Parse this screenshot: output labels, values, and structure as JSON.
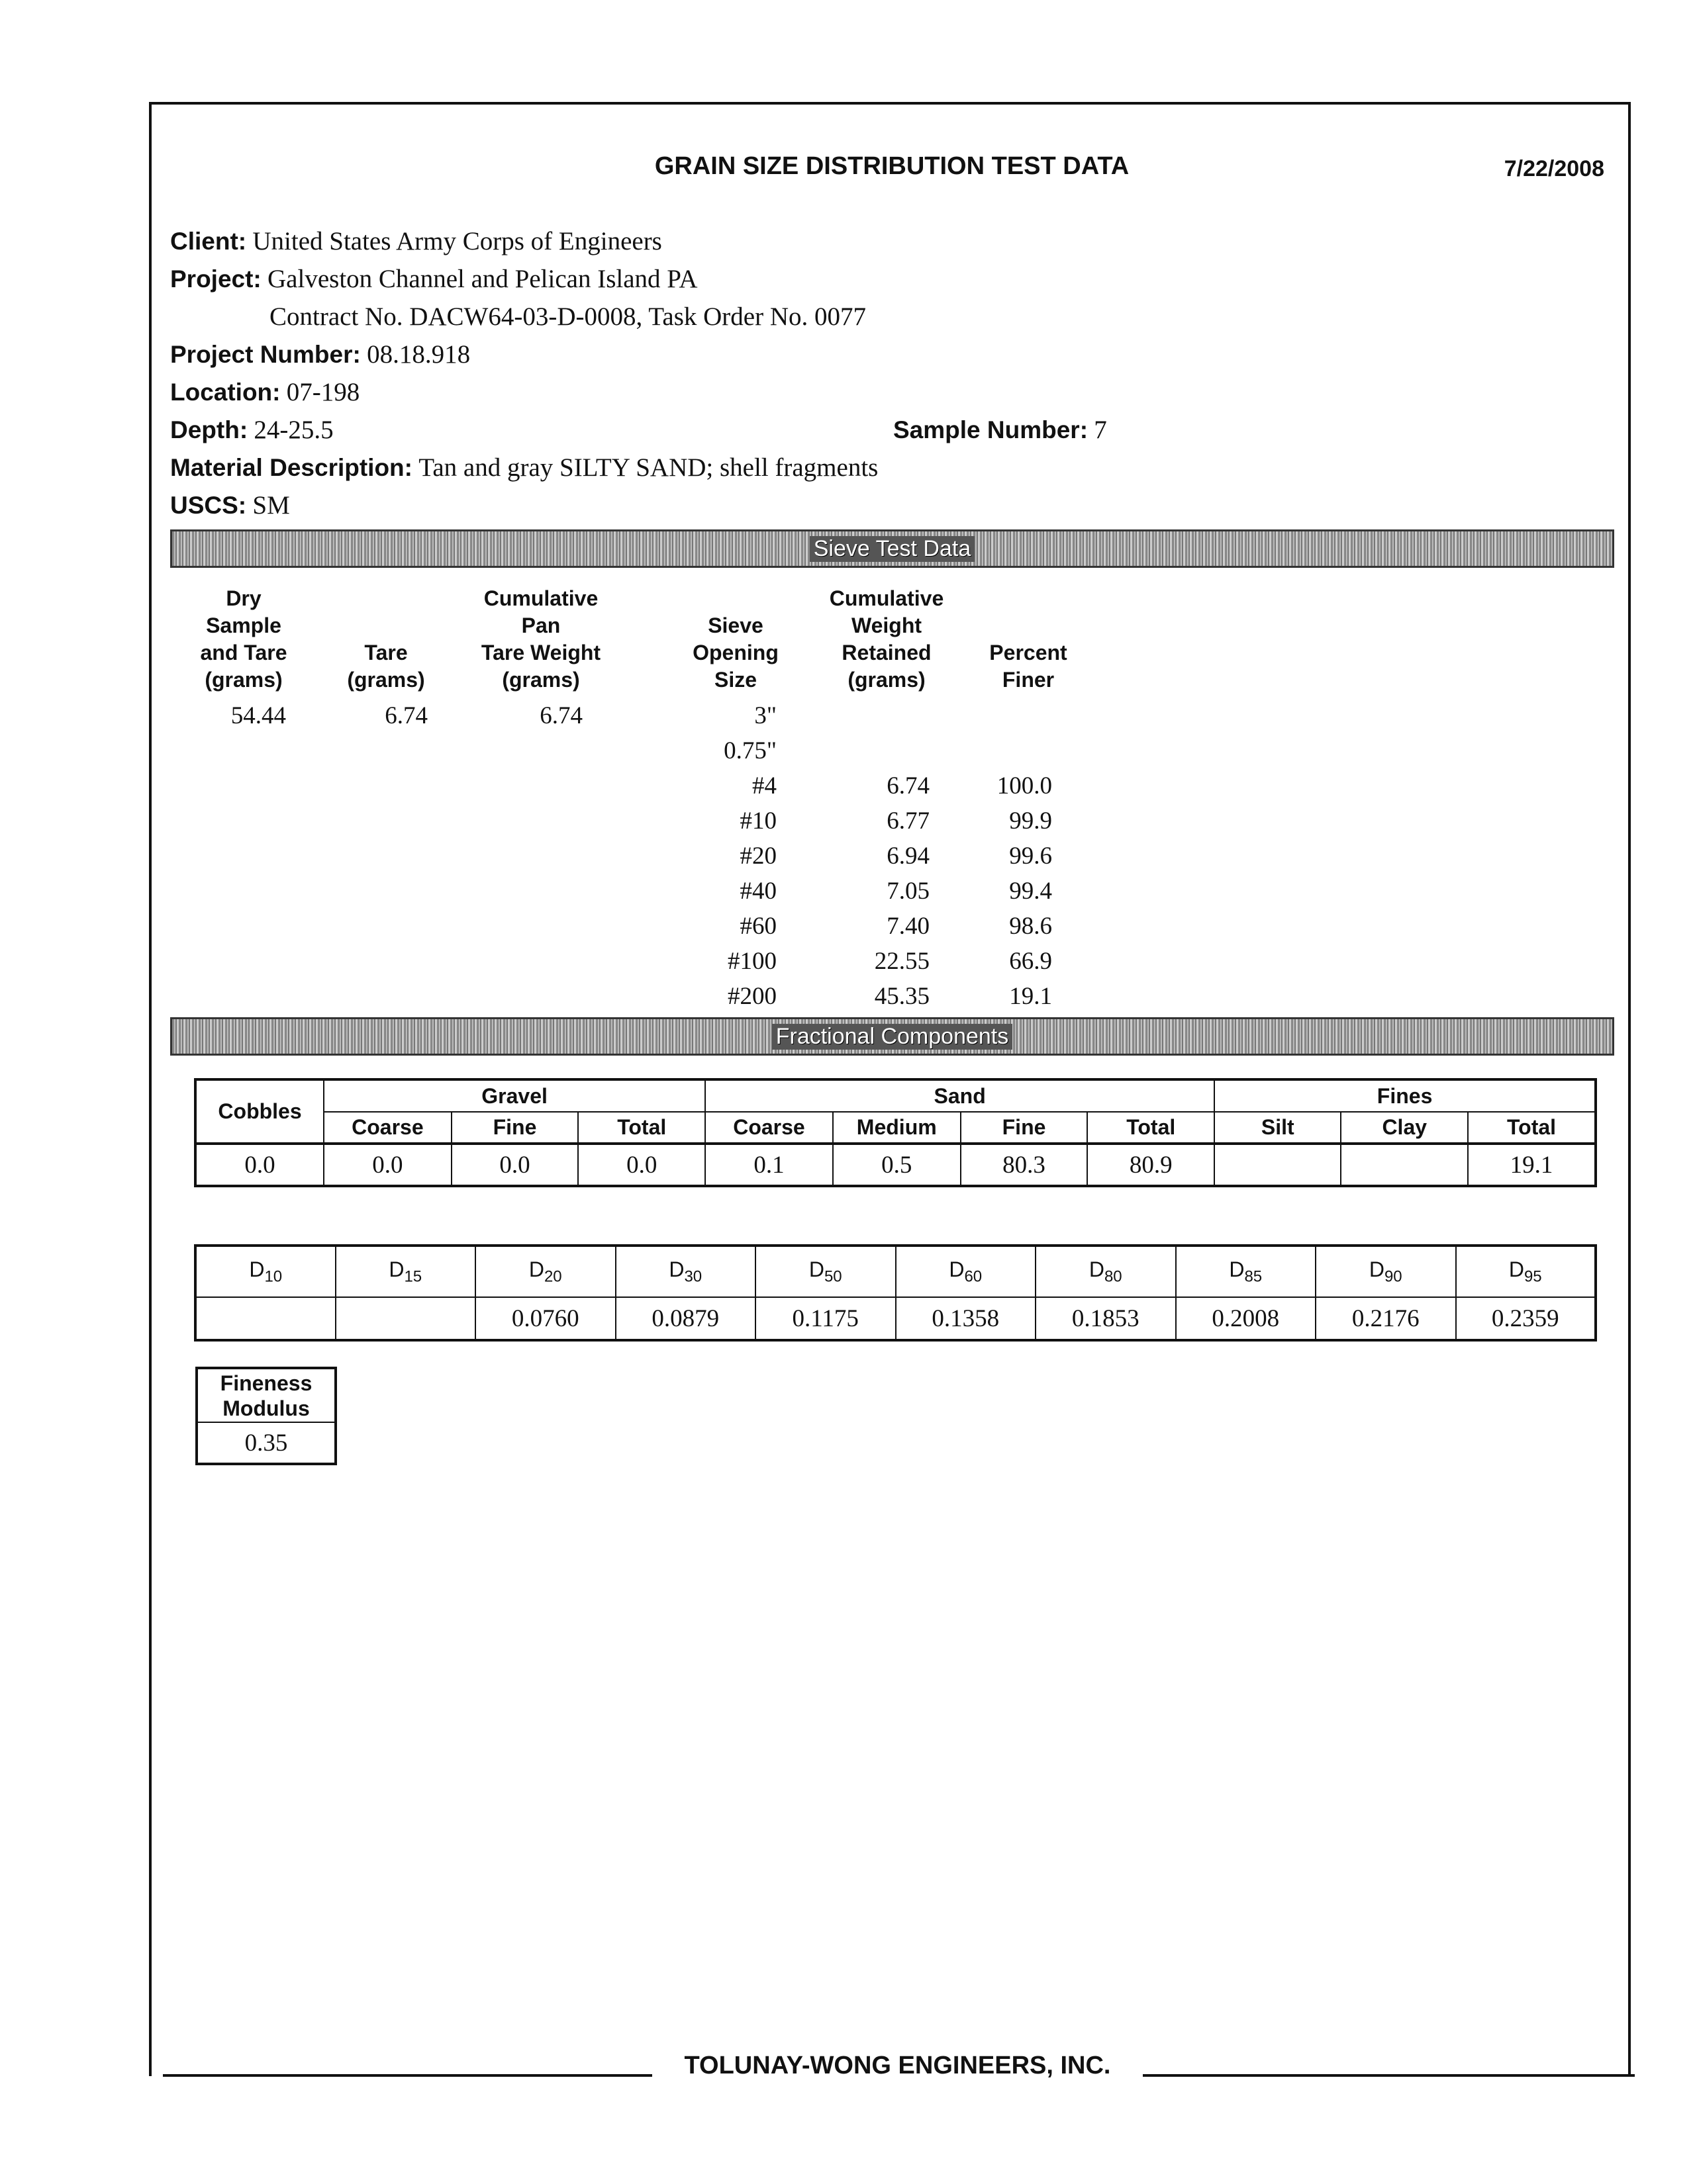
{
  "header": {
    "title": "GRAIN SIZE DISTRIBUTION TEST DATA",
    "date": "7/22/2008"
  },
  "info": {
    "client_label": "Client:",
    "client": "United States Army Corps of Engineers",
    "project_label": "Project:",
    "project": "Galveston Channel and Pelican Island PA",
    "contract": "Contract No. DACW64-03-D-0008, Task Order No. 0077",
    "project_number_label": "Project Number:",
    "project_number": "08.18.918",
    "location_label": "Location:",
    "location": "07-198",
    "depth_label": "Depth:",
    "depth": "24-25.5",
    "sample_number_label": "Sample Number:",
    "sample_number": "7",
    "material_label": "Material Description:",
    "material": "Tan and gray SILTY SAND; shell fragments",
    "uscs_label": "USCS:",
    "uscs": "SM"
  },
  "sieve": {
    "bar_title": "Sieve Test Data",
    "headers": [
      "Dry\nSample\nand Tare\n(grams)",
      "Tare\n(grams)",
      "Cumulative\nPan\nTare Weight\n(grams)",
      "Sieve\nOpening\nSize",
      "Cumulative\nWeight\nRetained\n(grams)",
      "Percent\nFiner"
    ],
    "dry_sample_and_tare": "54.44",
    "tare": "6.74",
    "pan_tare_weight": "6.74",
    "rows": [
      {
        "size": "3\"",
        "retained": "",
        "finer": ""
      },
      {
        "size": "0.75\"",
        "retained": "",
        "finer": ""
      },
      {
        "size": "#4",
        "retained": "6.74",
        "finer": "100.0"
      },
      {
        "size": "#10",
        "retained": "6.77",
        "finer": "99.9"
      },
      {
        "size": "#20",
        "retained": "6.94",
        "finer": "99.6"
      },
      {
        "size": "#40",
        "retained": "7.05",
        "finer": "99.4"
      },
      {
        "size": "#60",
        "retained": "7.40",
        "finer": "98.6"
      },
      {
        "size": "#100",
        "retained": "22.55",
        "finer": "66.9"
      },
      {
        "size": "#200",
        "retained": "45.35",
        "finer": "19.1"
      }
    ]
  },
  "fractional": {
    "bar_title": "Fractional Components",
    "groups": {
      "cobbles": "Cobbles",
      "gravel": "Gravel",
      "sand": "Sand",
      "fines": "Fines"
    },
    "subheaders": [
      "Coarse",
      "Fine",
      "Total",
      "Coarse",
      "Medium",
      "Fine",
      "Total",
      "Silt",
      "Clay",
      "Total"
    ],
    "values": [
      "0.0",
      "0.0",
      "0.0",
      "0.0",
      "0.1",
      "0.5",
      "80.3",
      "80.9",
      "",
      "",
      "19.1"
    ]
  },
  "d_values": {
    "labels": [
      "10",
      "15",
      "20",
      "30",
      "50",
      "60",
      "80",
      "85",
      "90",
      "95"
    ],
    "prefix": "D",
    "values": [
      "",
      "",
      "0.0760",
      "0.0879",
      "0.1175",
      "0.1358",
      "0.1853",
      "0.2008",
      "0.2176",
      "0.2359"
    ]
  },
  "fineness": {
    "label": "Fineness Modulus",
    "value": "0.35"
  },
  "footer": {
    "company": "TOLUNAY-WONG ENGINEERS, INC."
  }
}
